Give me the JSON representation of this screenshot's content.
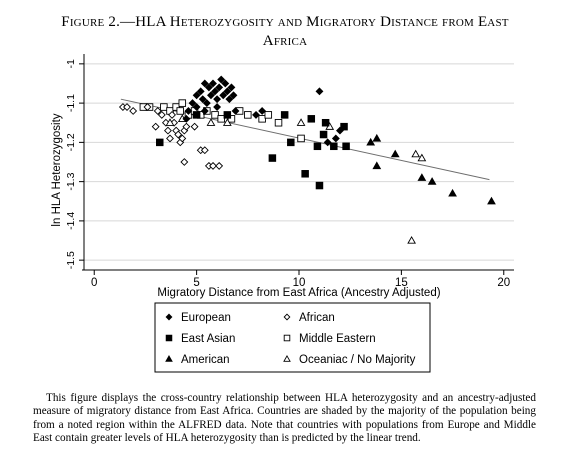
{
  "title_lines": [
    "Figure 2.—HLA Heterozygosity and Migratory Distance from East",
    "Africa"
  ],
  "caption": "This figure displays the cross-country relationship between HLA heterozygosity and an ancestry-adjusted measure of migratory distance from East Africa. Countries are shaded by the majority of the population being from a noted region within the ALFRED data. Note that countries with populations from Europe and Middle East contain greater levels of HLA heterozygosity than is predicted by the linear trend.",
  "chart_data": {
    "type": "scatter",
    "title": "",
    "xlabel": "Migratory Distance from East Africa (Ancestry Adjusted)",
    "ylabel": "ln HLA Heterozygosity",
    "xlim": [
      -0.5,
      20.5
    ],
    "ylim": [
      -1.52,
      -0.98
    ],
    "xticks": [
      0,
      5,
      10,
      15,
      20
    ],
    "xtick_labels": [
      "0",
      "5",
      "10",
      "15",
      "20"
    ],
    "yticks": [
      -1.5,
      -1.4,
      -1.3,
      -1.2,
      -1.1,
      -1.0
    ],
    "ytick_labels": [
      "-1.5",
      "-1.4",
      "-1.3",
      "-1.2",
      "-1.1",
      "-1"
    ],
    "grid": true,
    "legend_position": "bottom",
    "fit_line": {
      "x": [
        1.3,
        19.3
      ],
      "y": [
        -1.09,
        -1.295
      ]
    },
    "series": [
      {
        "name": "European",
        "marker": "diamond-filled",
        "points": [
          [
            4.6,
            -1.12
          ],
          [
            4.8,
            -1.1
          ],
          [
            5.0,
            -1.08
          ],
          [
            5.0,
            -1.11
          ],
          [
            5.2,
            -1.07
          ],
          [
            5.3,
            -1.09
          ],
          [
            5.4,
            -1.12
          ],
          [
            5.5,
            -1.1
          ],
          [
            5.6,
            -1.06
          ],
          [
            5.7,
            -1.08
          ],
          [
            5.8,
            -1.05
          ],
          [
            5.9,
            -1.07
          ],
          [
            6.0,
            -1.09
          ],
          [
            6.1,
            -1.06
          ],
          [
            6.2,
            -1.04
          ],
          [
            6.3,
            -1.08
          ],
          [
            6.4,
            -1.05
          ],
          [
            6.5,
            -1.07
          ],
          [
            6.6,
            -1.09
          ],
          [
            6.7,
            -1.06
          ],
          [
            6.8,
            -1.08
          ],
          [
            5.4,
            -1.05
          ],
          [
            6.0,
            -1.11
          ],
          [
            4.5,
            -1.14
          ],
          [
            7.9,
            -1.13
          ],
          [
            8.2,
            -1.12
          ],
          [
            11.0,
            -1.07
          ],
          [
            11.4,
            -1.2
          ],
          [
            11.8,
            -1.19
          ],
          [
            12.0,
            -1.17
          ],
          [
            6.9,
            -1.12
          ]
        ]
      },
      {
        "name": "African",
        "marker": "diamond-hollow",
        "points": [
          [
            1.4,
            -1.11
          ],
          [
            1.6,
            -1.11
          ],
          [
            1.9,
            -1.12
          ],
          [
            2.6,
            -1.11
          ],
          [
            3.1,
            -1.12
          ],
          [
            3.3,
            -1.13
          ],
          [
            3.5,
            -1.15
          ],
          [
            3.6,
            -1.17
          ],
          [
            3.7,
            -1.19
          ],
          [
            3.9,
            -1.15
          ],
          [
            4.0,
            -1.17
          ],
          [
            4.1,
            -1.18
          ],
          [
            4.2,
            -1.2
          ],
          [
            4.3,
            -1.19
          ],
          [
            4.4,
            -1.17
          ],
          [
            4.5,
            -1.16
          ],
          [
            3.8,
            -1.13
          ],
          [
            4.4,
            -1.25
          ],
          [
            4.9,
            -1.16
          ],
          [
            5.2,
            -1.22
          ],
          [
            5.4,
            -1.22
          ],
          [
            5.6,
            -1.26
          ],
          [
            5.8,
            -1.26
          ],
          [
            6.1,
            -1.26
          ],
          [
            3.0,
            -1.16
          ]
        ]
      },
      {
        "name": "East Asian",
        "marker": "square-filled",
        "points": [
          [
            3.2,
            -1.2
          ],
          [
            5.0,
            -1.13
          ],
          [
            6.5,
            -1.13
          ],
          [
            8.7,
            -1.24
          ],
          [
            9.3,
            -1.13
          ],
          [
            9.6,
            -1.2
          ],
          [
            10.3,
            -1.28
          ],
          [
            10.6,
            -1.14
          ],
          [
            10.9,
            -1.21
          ],
          [
            11.2,
            -1.18
          ],
          [
            11.3,
            -1.15
          ],
          [
            11.0,
            -1.31
          ],
          [
            11.7,
            -1.21
          ],
          [
            12.3,
            -1.21
          ],
          [
            12.2,
            -1.16
          ]
        ]
      },
      {
        "name": "Middle Eastern",
        "marker": "square-hollow",
        "points": [
          [
            2.4,
            -1.11
          ],
          [
            2.7,
            -1.11
          ],
          [
            3.4,
            -1.11
          ],
          [
            3.7,
            -1.12
          ],
          [
            4.0,
            -1.11
          ],
          [
            4.2,
            -1.12
          ],
          [
            4.3,
            -1.1
          ],
          [
            4.6,
            -1.13
          ],
          [
            4.9,
            -1.12
          ],
          [
            5.2,
            -1.13
          ],
          [
            5.5,
            -1.12
          ],
          [
            5.9,
            -1.13
          ],
          [
            6.2,
            -1.14
          ],
          [
            6.7,
            -1.14
          ],
          [
            7.1,
            -1.12
          ],
          [
            7.5,
            -1.13
          ],
          [
            8.2,
            -1.14
          ],
          [
            8.5,
            -1.13
          ],
          [
            9.0,
            -1.15
          ],
          [
            10.1,
            -1.19
          ]
        ]
      },
      {
        "name": "American",
        "marker": "triangle-filled",
        "points": [
          [
            13.5,
            -1.2
          ],
          [
            13.8,
            -1.19
          ],
          [
            13.8,
            -1.26
          ],
          [
            14.7,
            -1.23
          ],
          [
            16.0,
            -1.29
          ],
          [
            16.5,
            -1.3
          ],
          [
            17.5,
            -1.33
          ],
          [
            19.4,
            -1.35
          ]
        ]
      },
      {
        "name": "Oceaniac / No Majority",
        "marker": "triangle-hollow",
        "points": [
          [
            3.7,
            -1.15
          ],
          [
            4.3,
            -1.14
          ],
          [
            5.7,
            -1.15
          ],
          [
            6.5,
            -1.15
          ],
          [
            10.1,
            -1.15
          ],
          [
            11.5,
            -1.16
          ],
          [
            15.7,
            -1.23
          ],
          [
            16.0,
            -1.24
          ],
          [
            15.5,
            -1.45
          ]
        ]
      }
    ],
    "legend_order": [
      "European",
      "African",
      "East Asian",
      "Middle Eastern",
      "American",
      "Oceaniac / No Majority"
    ]
  }
}
